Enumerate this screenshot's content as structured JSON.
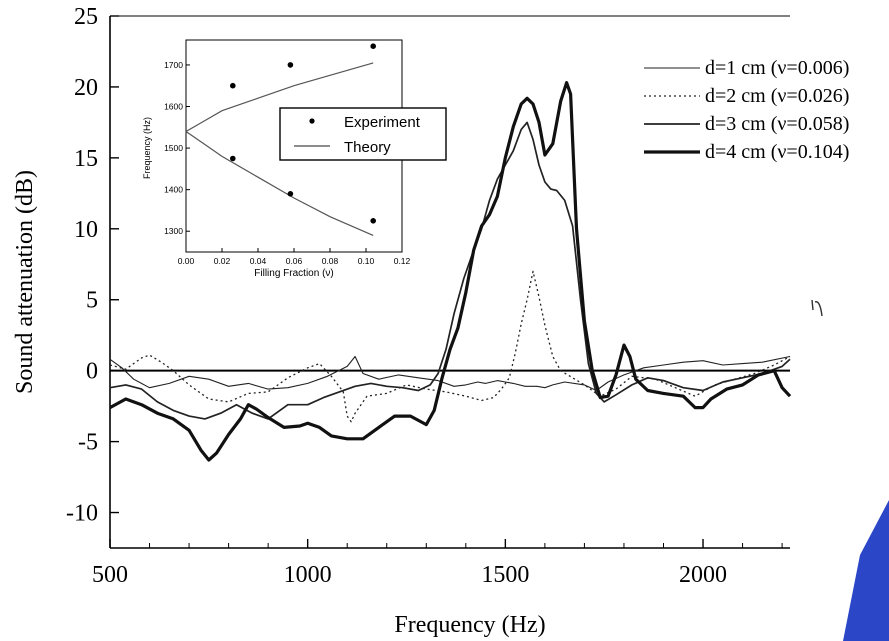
{
  "chart_data": [
    {
      "type": "line",
      "xlabel": "Frequency (Hz)",
      "ylabel": "Sound attenuation (dB)",
      "xlim": [
        500,
        2220
      ],
      "ylim": [
        -12.5,
        25
      ],
      "xticks": [
        500,
        1000,
        1500,
        2000
      ],
      "yticks": [
        25,
        20,
        15,
        10,
        5,
        0,
        -5,
        -10
      ],
      "xtick_labels": [
        "500",
        "1000",
        "1500",
        "2000"
      ],
      "ytick_labels": [
        "25",
        "20",
        "15",
        "10",
        "5",
        "0",
        "-5",
        "-10"
      ],
      "zero_line": true,
      "grid": false,
      "legend_position": "top-right",
      "series": [
        {
          "name": "d=1 cm (ν=0.006)",
          "style": "thin",
          "points": [
            [
              500,
              0.8
            ],
            [
              530,
              0.2
            ],
            [
              560,
              -0.6
            ],
            [
              600,
              -1.2
            ],
            [
              650,
              -0.9
            ],
            [
              700,
              -0.4
            ],
            [
              750,
              -0.6
            ],
            [
              800,
              -1.1
            ],
            [
              850,
              -0.9
            ],
            [
              900,
              -1.3
            ],
            [
              950,
              -1.2
            ],
            [
              1000,
              -0.9
            ],
            [
              1050,
              -0.4
            ],
            [
              1100,
              0.3
            ],
            [
              1120,
              1.0
            ],
            [
              1140,
              -0.2
            ],
            [
              1180,
              -0.6
            ],
            [
              1230,
              -0.3
            ],
            [
              1280,
              -0.5
            ],
            [
              1330,
              -0.7
            ],
            [
              1370,
              -1.1
            ],
            [
              1400,
              -1.0
            ],
            [
              1430,
              -0.8
            ],
            [
              1450,
              -0.9
            ],
            [
              1480,
              -0.7
            ],
            [
              1500,
              -0.8
            ],
            [
              1520,
              -0.9
            ],
            [
              1550,
              -1.1
            ],
            [
              1580,
              -1.1
            ],
            [
              1600,
              -1.2
            ],
            [
              1620,
              -1.0
            ],
            [
              1650,
              -0.8
            ],
            [
              1700,
              -1.0
            ],
            [
              1730,
              -1.4
            ],
            [
              1760,
              -0.8
            ],
            [
              1800,
              -0.3
            ],
            [
              1850,
              0.2
            ],
            [
              1900,
              0.4
            ],
            [
              1950,
              0.6
            ],
            [
              2000,
              0.7
            ],
            [
              2050,
              0.4
            ],
            [
              2100,
              0.5
            ],
            [
              2150,
              0.6
            ],
            [
              2220,
              1.0
            ]
          ]
        },
        {
          "name": "d=2 cm (ν=0.026)",
          "style": "dotted",
          "points": [
            [
              500,
              0.4
            ],
            [
              540,
              0.1
            ],
            [
              580,
              0.9
            ],
            [
              600,
              1.1
            ],
            [
              630,
              0.6
            ],
            [
              660,
              0.0
            ],
            [
              700,
              -1.0
            ],
            [
              750,
              -2.0
            ],
            [
              800,
              -2.2
            ],
            [
              850,
              -1.6
            ],
            [
              900,
              -1.5
            ],
            [
              950,
              -0.5
            ],
            [
              1000,
              0.2
            ],
            [
              1030,
              0.5
            ],
            [
              1060,
              -0.4
            ],
            [
              1090,
              -1.5
            ],
            [
              1100,
              -3.2
            ],
            [
              1110,
              -3.6
            ],
            [
              1120,
              -3.0
            ],
            [
              1150,
              -1.8
            ],
            [
              1200,
              -1.6
            ],
            [
              1250,
              -1.0
            ],
            [
              1300,
              -1.3
            ],
            [
              1350,
              -1.5
            ],
            [
              1400,
              -1.8
            ],
            [
              1440,
              -2.1
            ],
            [
              1470,
              -1.9
            ],
            [
              1490,
              -1.3
            ],
            [
              1510,
              -0.5
            ],
            [
              1525,
              1.2
            ],
            [
              1540,
              3.3
            ],
            [
              1555,
              5.0
            ],
            [
              1570,
              7.0
            ],
            [
              1585,
              5.2
            ],
            [
              1600,
              3.2
            ],
            [
              1620,
              1.0
            ],
            [
              1640,
              0.0
            ],
            [
              1670,
              -0.5
            ],
            [
              1700,
              -1.0
            ],
            [
              1740,
              -1.8
            ],
            [
              1780,
              -1.3
            ],
            [
              1820,
              -0.4
            ],
            [
              1880,
              -0.6
            ],
            [
              1930,
              -1.2
            ],
            [
              1980,
              -1.8
            ],
            [
              2030,
              -1.0
            ],
            [
              2080,
              -0.6
            ],
            [
              2130,
              -0.2
            ],
            [
              2180,
              0.4
            ],
            [
              2220,
              1.0
            ]
          ]
        },
        {
          "name": "d=3 cm (ν=0.058)",
          "style": "medium",
          "points": [
            [
              500,
              -1.2
            ],
            [
              540,
              -1.0
            ],
            [
              580,
              -1.3
            ],
            [
              620,
              -2.2
            ],
            [
              660,
              -2.8
            ],
            [
              700,
              -3.2
            ],
            [
              740,
              -3.4
            ],
            [
              780,
              -3.0
            ],
            [
              820,
              -2.4
            ],
            [
              860,
              -3.0
            ],
            [
              900,
              -3.4
            ],
            [
              950,
              -2.4
            ],
            [
              1000,
              -2.4
            ],
            [
              1040,
              -1.9
            ],
            [
              1080,
              -1.5
            ],
            [
              1120,
              -1.1
            ],
            [
              1160,
              -0.9
            ],
            [
              1200,
              -1.1
            ],
            [
              1240,
              -1.2
            ],
            [
              1280,
              -1.4
            ],
            [
              1310,
              -1.0
            ],
            [
              1330,
              -0.2
            ],
            [
              1350,
              1.5
            ],
            [
              1370,
              4.0
            ],
            [
              1395,
              6.5
            ],
            [
              1420,
              8.5
            ],
            [
              1440,
              10.0
            ],
            [
              1460,
              12.0
            ],
            [
              1480,
              13.5
            ],
            [
              1500,
              14.5
            ],
            [
              1520,
              15.5
            ],
            [
              1540,
              17.0
            ],
            [
              1555,
              17.5
            ],
            [
              1570,
              16.3
            ],
            [
              1585,
              14.5
            ],
            [
              1600,
              13.3
            ],
            [
              1615,
              12.8
            ],
            [
              1630,
              12.7
            ],
            [
              1650,
              12.0
            ],
            [
              1670,
              10.2
            ],
            [
              1690,
              5.0
            ],
            [
              1710,
              0.5
            ],
            [
              1730,
              -1.6
            ],
            [
              1750,
              -2.2
            ],
            [
              1780,
              -1.7
            ],
            [
              1820,
              -1.0
            ],
            [
              1860,
              -0.5
            ],
            [
              1900,
              -0.7
            ],
            [
              1950,
              -1.2
            ],
            [
              2000,
              -1.4
            ],
            [
              2050,
              -0.8
            ],
            [
              2100,
              -0.5
            ],
            [
              2150,
              -0.2
            ],
            [
              2200,
              0.3
            ],
            [
              2220,
              0.8
            ]
          ]
        },
        {
          "name": "d=4 cm (ν=0.104)",
          "style": "thick",
          "points": [
            [
              500,
              -2.6
            ],
            [
              540,
              -2.0
            ],
            [
              580,
              -2.4
            ],
            [
              620,
              -3.0
            ],
            [
              660,
              -3.4
            ],
            [
              700,
              -4.2
            ],
            [
              730,
              -5.6
            ],
            [
              750,
              -6.3
            ],
            [
              770,
              -5.8
            ],
            [
              800,
              -4.5
            ],
            [
              830,
              -3.4
            ],
            [
              850,
              -2.4
            ],
            [
              870,
              -2.7
            ],
            [
              900,
              -3.3
            ],
            [
              940,
              -4.0
            ],
            [
              980,
              -3.9
            ],
            [
              1000,
              -3.7
            ],
            [
              1030,
              -4.0
            ],
            [
              1060,
              -4.6
            ],
            [
              1100,
              -4.8
            ],
            [
              1140,
              -4.8
            ],
            [
              1180,
              -4.0
            ],
            [
              1220,
              -3.2
            ],
            [
              1260,
              -3.2
            ],
            [
              1300,
              -3.8
            ],
            [
              1320,
              -2.8
            ],
            [
              1340,
              -0.5
            ],
            [
              1360,
              1.5
            ],
            [
              1380,
              3.0
            ],
            [
              1400,
              5.5
            ],
            [
              1420,
              8.5
            ],
            [
              1440,
              10.2
            ],
            [
              1460,
              11.0
            ],
            [
              1480,
              12.3
            ],
            [
              1500,
              15.0
            ],
            [
              1520,
              17.2
            ],
            [
              1540,
              18.8
            ],
            [
              1555,
              19.2
            ],
            [
              1570,
              18.8
            ],
            [
              1585,
              17.5
            ],
            [
              1600,
              15.2
            ],
            [
              1620,
              16.0
            ],
            [
              1640,
              19.0
            ],
            [
              1655,
              20.3
            ],
            [
              1665,
              19.5
            ],
            [
              1680,
              10.0
            ],
            [
              1700,
              3.5
            ],
            [
              1720,
              0.0
            ],
            [
              1740,
              -1.9
            ],
            [
              1760,
              -1.8
            ],
            [
              1780,
              -0.3
            ],
            [
              1800,
              1.8
            ],
            [
              1815,
              1.0
            ],
            [
              1830,
              -0.6
            ],
            [
              1860,
              -1.4
            ],
            [
              1900,
              -1.6
            ],
            [
              1950,
              -1.8
            ],
            [
              1980,
              -2.6
            ],
            [
              2000,
              -2.6
            ],
            [
              2020,
              -2.0
            ],
            [
              2060,
              -1.3
            ],
            [
              2100,
              -1.0
            ],
            [
              2140,
              -0.3
            ],
            [
              2180,
              0.0
            ],
            [
              2200,
              -1.2
            ],
            [
              2220,
              -1.8
            ]
          ]
        }
      ]
    },
    {
      "type": "scatter",
      "xlabel": "Filling Fraction (ν)",
      "ylabel": "Frequency (Hz)",
      "xlim": [
        0.0,
        0.12
      ],
      "ylim": [
        1250,
        1760
      ],
      "xticks": [
        0.0,
        0.02,
        0.04,
        0.06,
        0.08,
        0.1,
        0.12
      ],
      "xtick_labels": [
        "0.00",
        "0.02",
        "0.04",
        "0.06",
        "0.08",
        "0.10",
        "0.12"
      ],
      "yticks": [
        1300,
        1400,
        1500,
        1600,
        1700
      ],
      "ytick_labels": [
        "1300",
        "1400",
        "1500",
        "1600",
        "1700"
      ],
      "legend_position": "center-right",
      "series": [
        {
          "name": "Experiment",
          "kind": "points",
          "points": [
            [
              0.026,
              1650
            ],
            [
              0.026,
              1475
            ],
            [
              0.058,
              1700
            ],
            [
              0.058,
              1390
            ],
            [
              0.104,
              1745
            ],
            [
              0.104,
              1325
            ]
          ]
        },
        {
          "name": "Theory",
          "kind": "lines",
          "upper": [
            [
              0.0,
              1540
            ],
            [
              0.01,
              1565
            ],
            [
              0.02,
              1590
            ],
            [
              0.04,
              1620
            ],
            [
              0.06,
              1650
            ],
            [
              0.08,
              1675
            ],
            [
              0.104,
              1705
            ]
          ],
          "lower": [
            [
              0.0,
              1540
            ],
            [
              0.01,
              1510
            ],
            [
              0.02,
              1480
            ],
            [
              0.04,
              1430
            ],
            [
              0.06,
              1380
            ],
            [
              0.08,
              1335
            ],
            [
              0.104,
              1290
            ]
          ]
        }
      ]
    }
  ]
}
